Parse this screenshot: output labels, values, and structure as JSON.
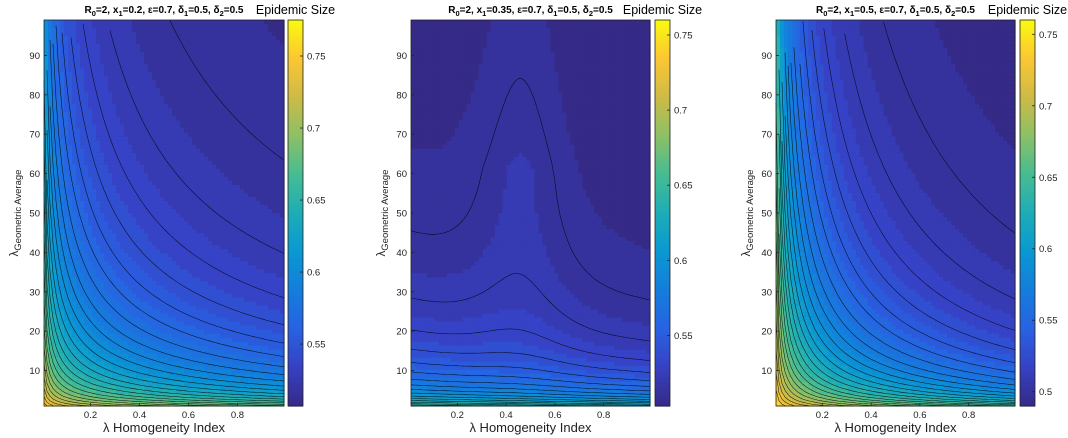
{
  "chart_data": [
    {
      "type": "heatmap",
      "subtype": "filled-contour",
      "title": "R_0=2, x_1=0.2, ε=0.7, δ_1=0.5, δ_2=0.5",
      "title_parts": [
        {
          "t": "R"
        },
        {
          "t": "0",
          "sub": true
        },
        {
          "t": "=2, x"
        },
        {
          "t": "1",
          "sub": true
        },
        {
          "t": "=0.2, ε=0.7, δ"
        },
        {
          "t": "1",
          "sub": true
        },
        {
          "t": "=0.5, δ"
        },
        {
          "t": "2",
          "sub": true
        },
        {
          "t": "=0.5"
        }
      ],
      "colorbar_label": "Epidemic Size",
      "xlabel": "λ Homogeneity Index",
      "ylabel_main": "λ",
      "ylabel_sub": "Geometric Average",
      "xlim": [
        0.01,
        0.99
      ],
      "ylim": [
        1,
        99
      ],
      "xticks": [
        0.2,
        0.4,
        0.6,
        0.8
      ],
      "yticks": [
        10,
        20,
        30,
        40,
        50,
        60,
        70,
        80,
        90
      ],
      "clim": [
        0.507,
        0.775
      ],
      "cticks": [
        0.55,
        0.6,
        0.65,
        0.7,
        0.75
      ],
      "colormap": "parula",
      "grid": false
    },
    {
      "type": "heatmap",
      "subtype": "filled-contour",
      "title": "R_0=2, x_1=0.35, ε=0.7, δ_1=0.5, δ_2=0.5",
      "title_parts": [
        {
          "t": "R"
        },
        {
          "t": "0",
          "sub": true
        },
        {
          "t": "=2, x"
        },
        {
          "t": "1",
          "sub": true
        },
        {
          "t": "=0.35, ε=0.7, δ"
        },
        {
          "t": "1",
          "sub": true
        },
        {
          "t": "=0.5, δ"
        },
        {
          "t": "2",
          "sub": true
        },
        {
          "t": "=0.5"
        }
      ],
      "colorbar_label": "Epidemic Size",
      "xlabel": "λ Homogeneity Index",
      "ylabel_main": "λ",
      "ylabel_sub": "Geometric Average",
      "xlim": [
        0.01,
        0.99
      ],
      "ylim": [
        1,
        99
      ],
      "xticks": [
        0.2,
        0.4,
        0.6,
        0.8
      ],
      "yticks": [
        10,
        20,
        30,
        40,
        50,
        60,
        70,
        80,
        90
      ],
      "clim": [
        0.503,
        0.76
      ],
      "cticks": [
        0.55,
        0.6,
        0.65,
        0.7,
        0.75
      ],
      "colormap": "parula",
      "grid": false
    },
    {
      "type": "heatmap",
      "subtype": "filled-contour",
      "title": "R_0=2, x_1=0.5, ε=0.7, δ_1=0.5, δ_2=0.5",
      "title_parts": [
        {
          "t": "R"
        },
        {
          "t": "0",
          "sub": true
        },
        {
          "t": "=2, x"
        },
        {
          "t": "1",
          "sub": true
        },
        {
          "t": "=0.5, ε=0.7, δ"
        },
        {
          "t": "1",
          "sub": true
        },
        {
          "t": "=0.5, δ"
        },
        {
          "t": "2",
          "sub": true
        },
        {
          "t": "=0.5"
        }
      ],
      "colorbar_label": "Epidemic Size",
      "xlabel": "λ Homogeneity Index",
      "ylabel_main": "λ",
      "ylabel_sub": "Geometric Average",
      "xlim": [
        0.01,
        0.99
      ],
      "ylim": [
        1,
        99
      ],
      "xticks": [
        0.2,
        0.4,
        0.6,
        0.8
      ],
      "yticks": [
        10,
        20,
        30,
        40,
        50,
        60,
        70,
        80,
        90
      ],
      "clim": [
        0.49,
        0.76
      ],
      "cticks": [
        0.5,
        0.55,
        0.6,
        0.65,
        0.7,
        0.75
      ],
      "colormap": "parula",
      "grid": false
    }
  ]
}
